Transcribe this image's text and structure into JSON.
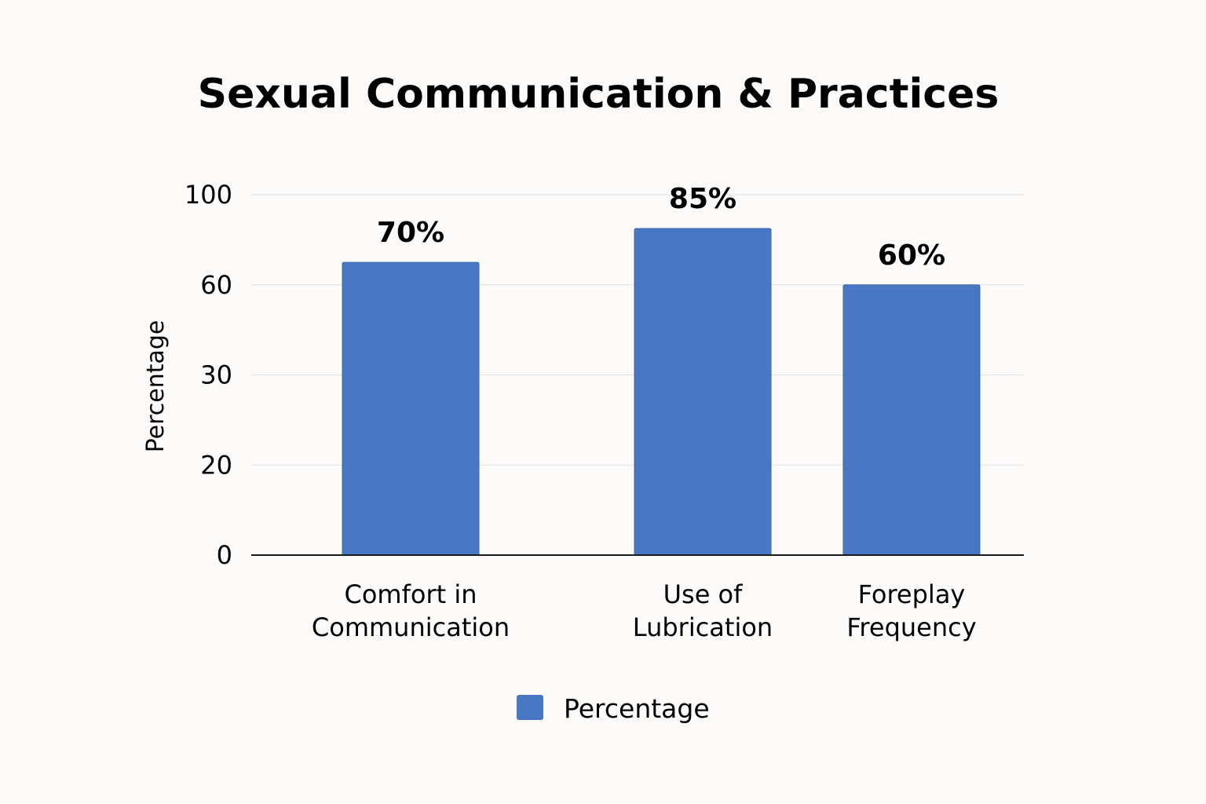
{
  "chart_data": {
    "type": "bar",
    "title": "Sexual Communication & Practices",
    "xlabel": "",
    "ylabel": "Percentage",
    "categories": [
      [
        "Comfort in",
        "Communication"
      ],
      [
        "Use of",
        "Lubrication"
      ],
      [
        "Foreplay",
        "Frequency"
      ]
    ],
    "series": [
      {
        "name": "Percentage",
        "values": [
          70,
          85,
          60
        ],
        "data_labels": [
          "70%",
          "85%",
          "60%"
        ],
        "color": "#4878c4"
      }
    ],
    "y_ticks": [
      {
        "label": "0",
        "value": 0
      },
      {
        "label": "20",
        "value": 20
      },
      {
        "label": "30",
        "value": 30
      },
      {
        "label": "60",
        "value": 60
      },
      {
        "label": "100",
        "value": 100
      }
    ],
    "grid": true,
    "legend_position": "bottom-center"
  }
}
